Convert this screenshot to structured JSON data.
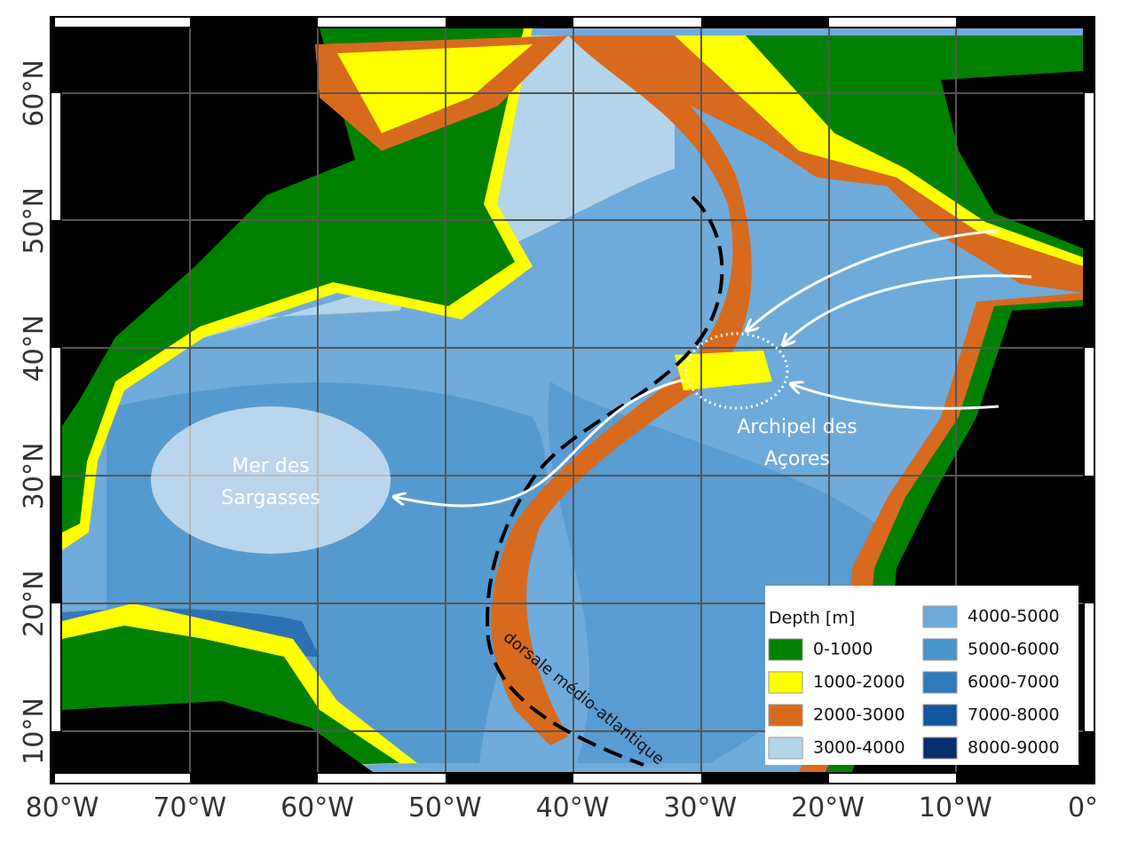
{
  "map": {
    "x_labels": [
      "80°W",
      "70°W",
      "60°W",
      "50°W",
      "40°W",
      "30°W",
      "20°W",
      "10°W",
      "0°"
    ],
    "y_labels": [
      "60°N",
      "50°N",
      "40°N",
      "30°N",
      "20°N",
      "10°N"
    ],
    "legend": {
      "title": "Depth [m]",
      "items": [
        {
          "label": "0-1000",
          "color": "#008000"
        },
        {
          "label": "1000-2000",
          "color": "#ffff00"
        },
        {
          "label": "2000-3000",
          "color": "#d86a1e"
        },
        {
          "label": "3000-4000",
          "color": "#b4d4ea"
        },
        {
          "label": "4000-5000",
          "color": "#6fabda"
        },
        {
          "label": "5000-6000",
          "color": "#4a93cb"
        },
        {
          "label": "6000-7000",
          "color": "#2f7abd"
        },
        {
          "label": "7000-8000",
          "color": "#1256a0"
        },
        {
          "label": "8000-9000",
          "color": "#06306b"
        }
      ]
    },
    "annotations": {
      "sargasso": [
        "Mer des",
        "Sargasses"
      ],
      "azores": [
        "Archipel des",
        "Açores"
      ],
      "ridge": "dorsale médio-atlantique"
    }
  }
}
